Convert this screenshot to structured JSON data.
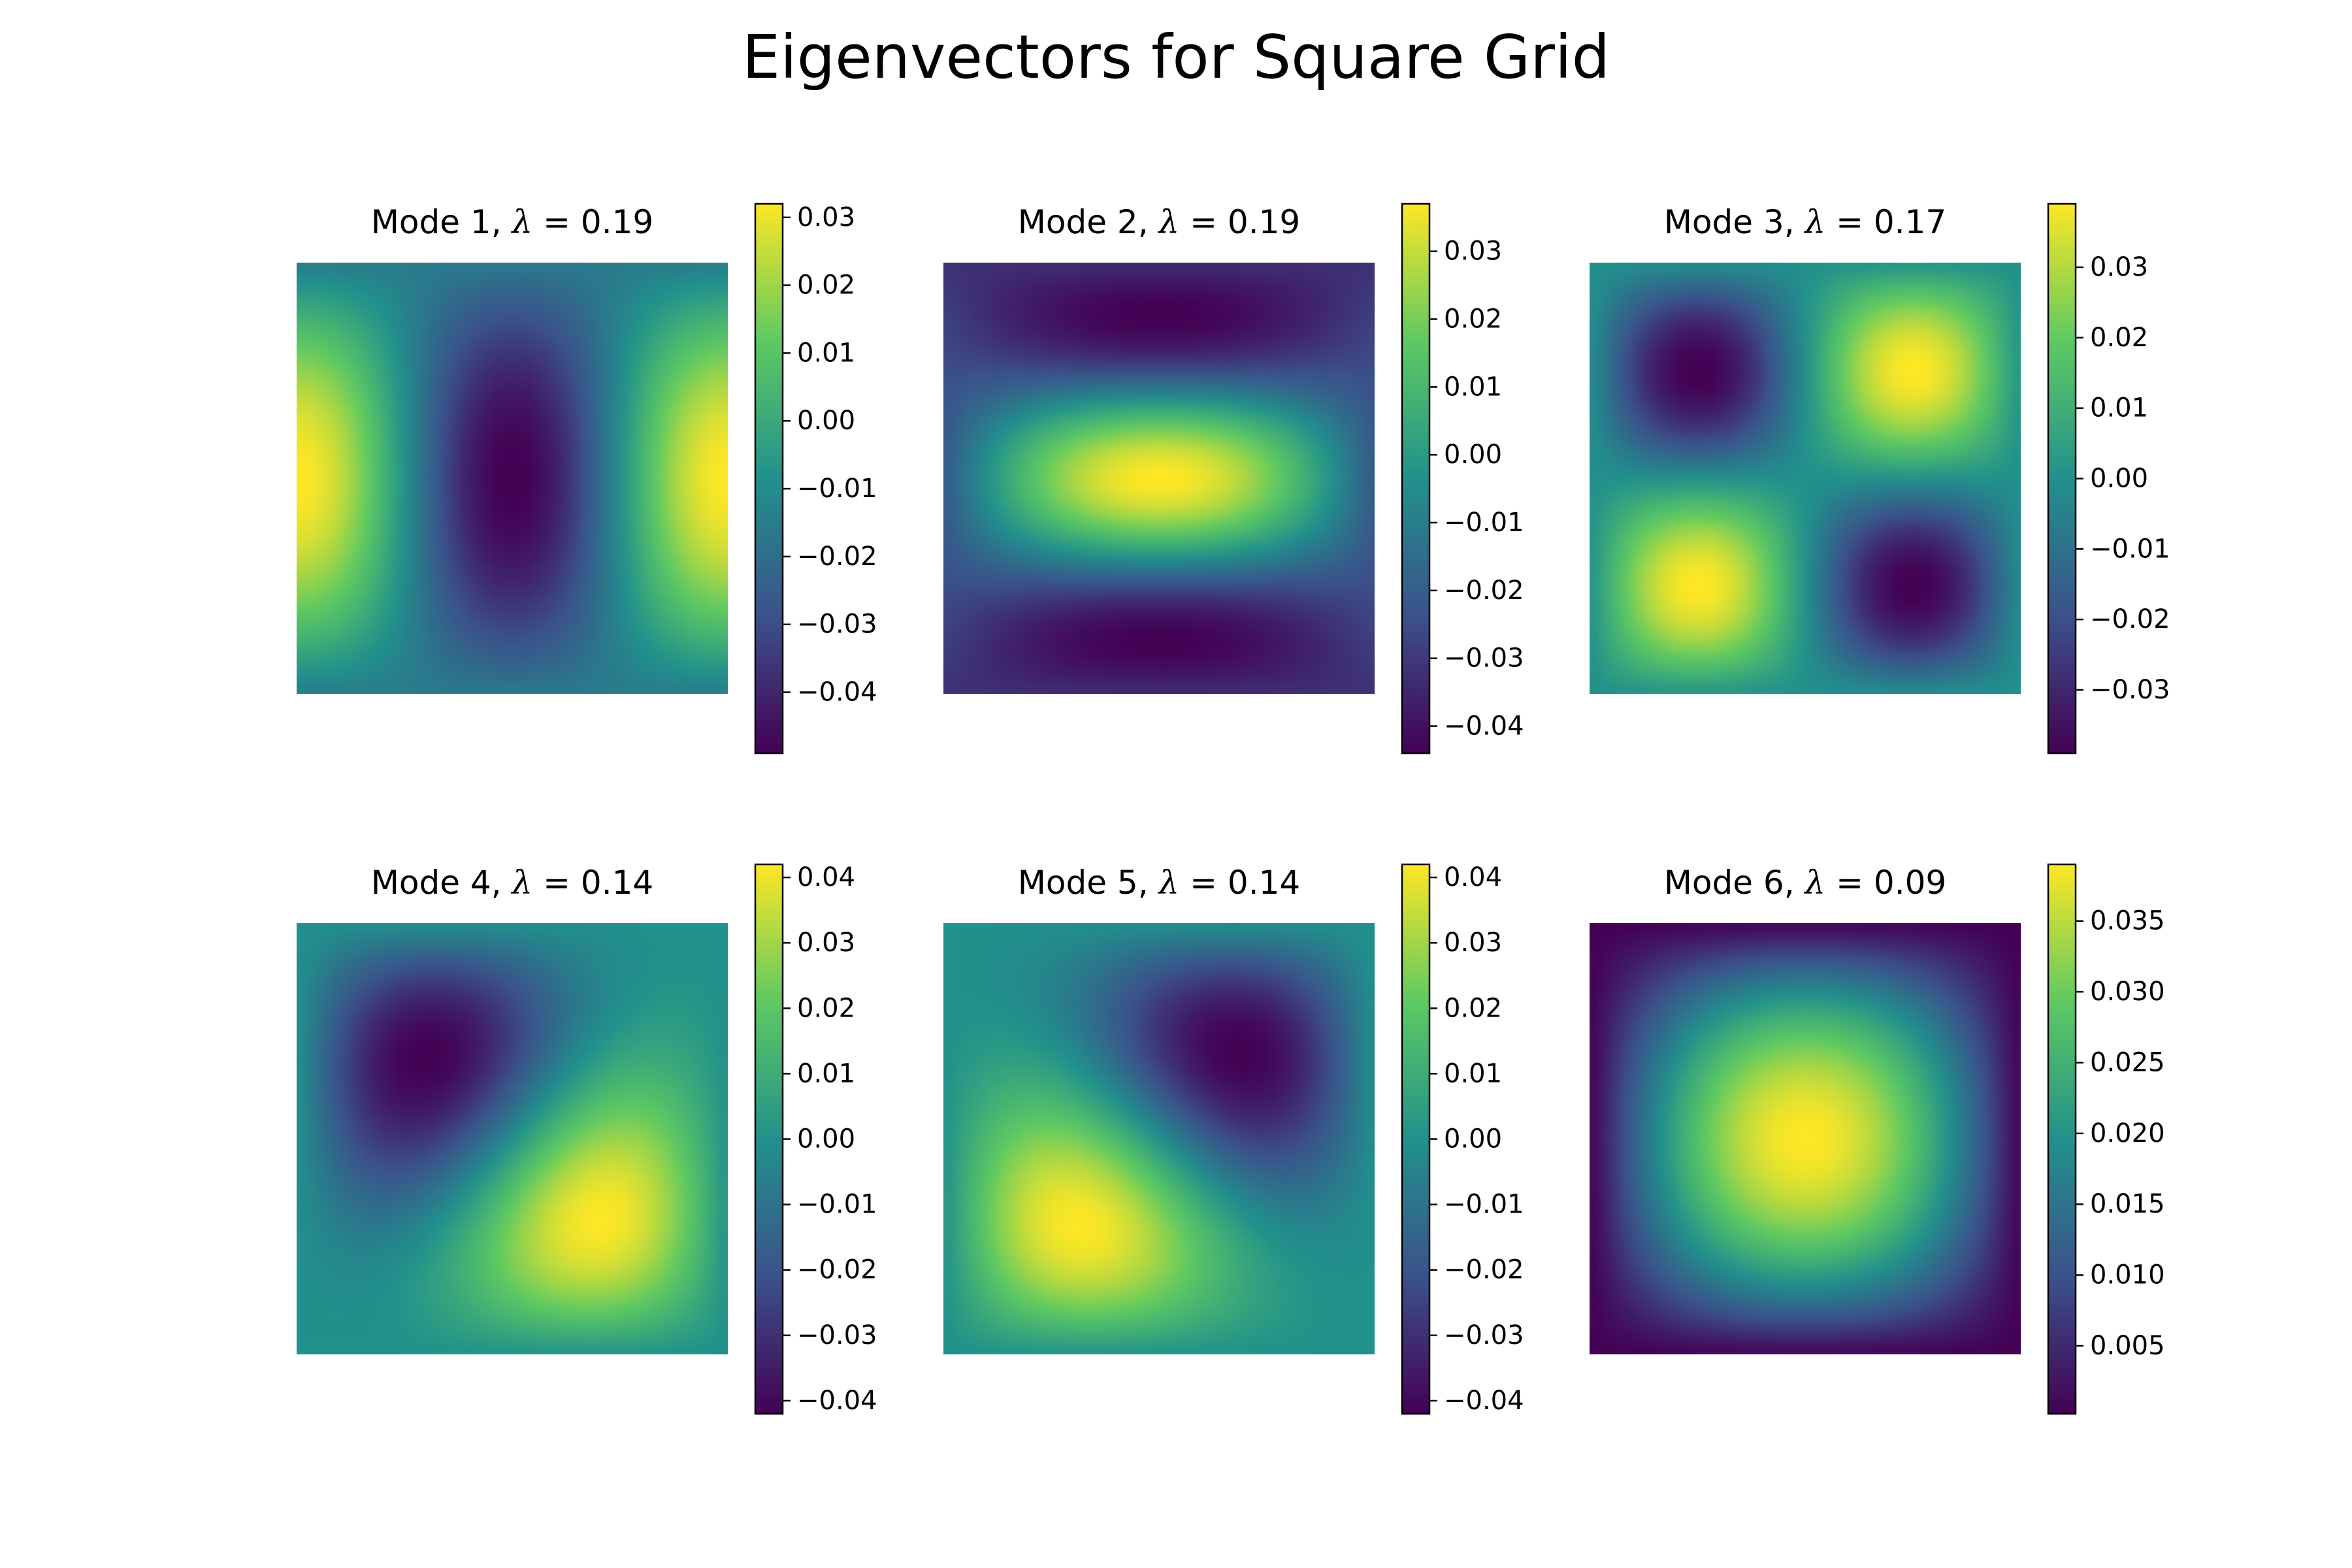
{
  "title": "Eigenvectors for Square Grid",
  "colormap": [
    "#440154",
    "#3b528b",
    "#21918c",
    "#5ec962",
    "#fde725"
  ],
  "chart_data": [
    {
      "type": "heatmap",
      "title_prefix": "Mode 1, ",
      "lambda_symbol": "λ",
      "title_suffix": " = 0.19",
      "eigenvalue": 0.19,
      "grid_size": 40,
      "pattern": "mode1",
      "vmin": -0.049,
      "vmax": 0.032,
      "ticks": [
        {
          "value": 0.03,
          "label": "0.03"
        },
        {
          "value": 0.02,
          "label": "0.02"
        },
        {
          "value": 0.01,
          "label": "0.01"
        },
        {
          "value": 0.0,
          "label": "0.00"
        },
        {
          "value": -0.01,
          "label": "−0.01"
        },
        {
          "value": -0.02,
          "label": "−0.02"
        },
        {
          "value": -0.03,
          "label": "−0.03"
        },
        {
          "value": -0.04,
          "label": "−0.04"
        }
      ]
    },
    {
      "type": "heatmap",
      "title_prefix": "Mode 2, ",
      "lambda_symbol": "λ",
      "title_suffix": " = 0.19",
      "eigenvalue": 0.19,
      "grid_size": 40,
      "pattern": "mode2",
      "vmin": -0.044,
      "vmax": 0.037,
      "ticks": [
        {
          "value": 0.03,
          "label": "0.03"
        },
        {
          "value": 0.02,
          "label": "0.02"
        },
        {
          "value": 0.01,
          "label": "0.01"
        },
        {
          "value": 0.0,
          "label": "0.00"
        },
        {
          "value": -0.01,
          "label": "−0.01"
        },
        {
          "value": -0.02,
          "label": "−0.02"
        },
        {
          "value": -0.03,
          "label": "−0.03"
        },
        {
          "value": -0.04,
          "label": "−0.04"
        }
      ]
    },
    {
      "type": "heatmap",
      "title_prefix": "Mode 3, ",
      "lambda_symbol": "λ",
      "title_suffix": " = 0.17",
      "eigenvalue": 0.17,
      "grid_size": 40,
      "pattern": "mode3",
      "vmin": -0.039,
      "vmax": 0.039,
      "ticks": [
        {
          "value": 0.03,
          "label": "0.03"
        },
        {
          "value": 0.02,
          "label": "0.02"
        },
        {
          "value": 0.01,
          "label": "0.01"
        },
        {
          "value": 0.0,
          "label": "0.00"
        },
        {
          "value": -0.01,
          "label": "−0.01"
        },
        {
          "value": -0.02,
          "label": "−0.02"
        },
        {
          "value": -0.03,
          "label": "−0.03"
        }
      ]
    },
    {
      "type": "heatmap",
      "title_prefix": "Mode 4, ",
      "lambda_symbol": "λ",
      "title_suffix": " = 0.14",
      "eigenvalue": 0.14,
      "grid_size": 40,
      "pattern": "mode4",
      "vmin": -0.042,
      "vmax": 0.042,
      "ticks": [
        {
          "value": 0.04,
          "label": "0.04"
        },
        {
          "value": 0.03,
          "label": "0.03"
        },
        {
          "value": 0.02,
          "label": "0.02"
        },
        {
          "value": 0.01,
          "label": "0.01"
        },
        {
          "value": 0.0,
          "label": "0.00"
        },
        {
          "value": -0.01,
          "label": "−0.01"
        },
        {
          "value": -0.02,
          "label": "−0.02"
        },
        {
          "value": -0.03,
          "label": "−0.03"
        },
        {
          "value": -0.04,
          "label": "−0.04"
        }
      ]
    },
    {
      "type": "heatmap",
      "title_prefix": "Mode 5, ",
      "lambda_symbol": "λ",
      "title_suffix": " = 0.14",
      "eigenvalue": 0.14,
      "grid_size": 40,
      "pattern": "mode5",
      "vmin": -0.042,
      "vmax": 0.042,
      "ticks": [
        {
          "value": 0.04,
          "label": "0.04"
        },
        {
          "value": 0.03,
          "label": "0.03"
        },
        {
          "value": 0.02,
          "label": "0.02"
        },
        {
          "value": 0.01,
          "label": "0.01"
        },
        {
          "value": 0.0,
          "label": "0.00"
        },
        {
          "value": -0.01,
          "label": "−0.01"
        },
        {
          "value": -0.02,
          "label": "−0.02"
        },
        {
          "value": -0.03,
          "label": "−0.03"
        },
        {
          "value": -0.04,
          "label": "−0.04"
        }
      ]
    },
    {
      "type": "heatmap",
      "title_prefix": "Mode 6, ",
      "lambda_symbol": "λ",
      "title_suffix": " = 0.09",
      "eigenvalue": 0.09,
      "grid_size": 40,
      "pattern": "mode6",
      "vmin": 0.0002,
      "vmax": 0.039,
      "ticks": [
        {
          "value": 0.035,
          "label": "0.035"
        },
        {
          "value": 0.03,
          "label": "0.030"
        },
        {
          "value": 0.025,
          "label": "0.025"
        },
        {
          "value": 0.02,
          "label": "0.020"
        },
        {
          "value": 0.015,
          "label": "0.015"
        },
        {
          "value": 0.01,
          "label": "0.010"
        },
        {
          "value": 0.005,
          "label": "0.005"
        }
      ]
    }
  ]
}
